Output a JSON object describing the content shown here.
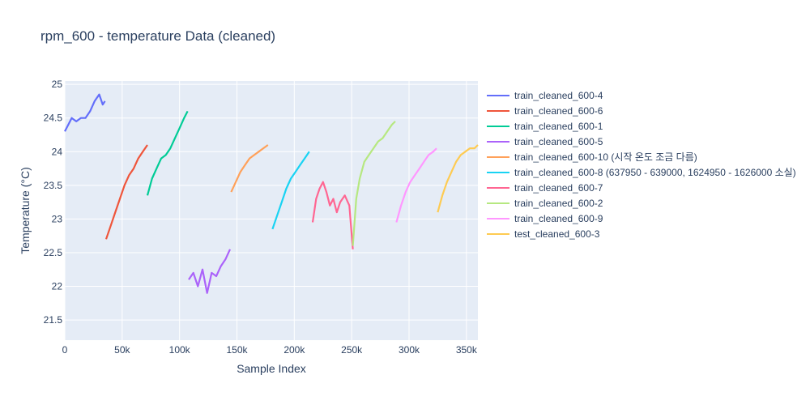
{
  "chart_data": {
    "type": "line",
    "title": "rpm_600 - temperature Data (cleaned)",
    "xlabel": "Sample Index",
    "ylabel": "Temperature (°C)",
    "xlim": [
      0,
      360000
    ],
    "ylim": [
      21.2,
      25.05
    ],
    "x_ticks": [
      0,
      50000,
      100000,
      150000,
      200000,
      250000,
      300000,
      350000
    ],
    "x_tick_labels": [
      "0",
      "50k",
      "100k",
      "150k",
      "200k",
      "250k",
      "300k",
      "350k"
    ],
    "y_ticks": [
      21.5,
      22,
      22.5,
      23,
      23.5,
      24,
      24.5,
      25
    ],
    "y_tick_labels": [
      "21.5",
      "22",
      "22.5",
      "23",
      "23.5",
      "24",
      "24.5",
      "25"
    ],
    "grid": true,
    "legend_position": "right",
    "series": [
      {
        "name": "train_cleaned_600-4",
        "color": "#636efa",
        "x": [
          0,
          3000,
          6000,
          10000,
          14000,
          18000,
          22000,
          26000,
          30000,
          33000,
          35000
        ],
        "y": [
          24.3,
          24.4,
          24.5,
          24.45,
          24.5,
          24.5,
          24.6,
          24.75,
          24.85,
          24.7,
          24.75
        ]
      },
      {
        "name": "train_cleaned_600-6",
        "color": "#ef553b",
        "x": [
          36000,
          40000,
          44000,
          48000,
          52000,
          56000,
          60000,
          64000,
          68000,
          72000
        ],
        "y": [
          22.7,
          22.9,
          23.1,
          23.3,
          23.5,
          23.65,
          23.75,
          23.9,
          24.0,
          24.1
        ]
      },
      {
        "name": "train_cleaned_600-1",
        "color": "#00cc96",
        "x": [
          72000,
          76000,
          80000,
          84000,
          88000,
          92000,
          96000,
          100000,
          104000,
          107000
        ],
        "y": [
          23.35,
          23.6,
          23.75,
          23.9,
          23.95,
          24.05,
          24.2,
          24.35,
          24.5,
          24.6
        ]
      },
      {
        "name": "train_cleaned_600-5",
        "color": "#ab63fa",
        "x": [
          108000,
          112000,
          116000,
          120000,
          124000,
          128000,
          132000,
          136000,
          140000,
          144000
        ],
        "y": [
          22.1,
          22.2,
          22.0,
          22.25,
          21.9,
          22.2,
          22.15,
          22.3,
          22.4,
          22.55
        ]
      },
      {
        "name": "train_cleaned_600-10 (시작 온도 조금 다름)",
        "color": "#ffa15a",
        "x": [
          145000,
          149000,
          153000,
          157000,
          161000,
          165000,
          169000,
          173000,
          177000
        ],
        "y": [
          23.4,
          23.55,
          23.7,
          23.8,
          23.9,
          23.95,
          24.0,
          24.05,
          24.1
        ]
      },
      {
        "name": "train_cleaned_600-8 (637950 - 639000, 1624950 - 1626000 소실)",
        "color": "#19d3f3",
        "x": [
          181000,
          185000,
          189000,
          193000,
          197000,
          201000,
          205000,
          209000,
          213000
        ],
        "y": [
          22.85,
          23.05,
          23.25,
          23.45,
          23.6,
          23.7,
          23.8,
          23.9,
          24.0
        ]
      },
      {
        "name": "train_cleaned_600-7",
        "color": "#ff6692",
        "x": [
          216000,
          219000,
          222000,
          225000,
          228000,
          231000,
          234000,
          237000,
          240000,
          244000,
          248000,
          251000
        ],
        "y": [
          22.95,
          23.3,
          23.45,
          23.55,
          23.4,
          23.2,
          23.3,
          23.1,
          23.25,
          23.35,
          23.2,
          22.55
        ]
      },
      {
        "name": "train_cleaned_600-2",
        "color": "#b6e880",
        "x": [
          251000,
          254000,
          257000,
          261000,
          265000,
          269000,
          273000,
          277000,
          281000,
          285000,
          288000
        ],
        "y": [
          22.6,
          23.3,
          23.6,
          23.85,
          23.95,
          24.05,
          24.15,
          24.2,
          24.3,
          24.4,
          24.45
        ]
      },
      {
        "name": "train_cleaned_600-9",
        "color": "#ff97ff",
        "x": [
          289000,
          293000,
          297000,
          301000,
          305000,
          309000,
          313000,
          317000,
          321000,
          324000
        ],
        "y": [
          22.95,
          23.2,
          23.4,
          23.55,
          23.65,
          23.75,
          23.85,
          23.95,
          24.0,
          24.05
        ]
      },
      {
        "name": "test_cleaned_600-3",
        "color": "#fecb52",
        "x": [
          325000,
          329000,
          333000,
          337000,
          341000,
          345000,
          349000,
          353000,
          357000,
          360000
        ],
        "y": [
          23.1,
          23.35,
          23.55,
          23.7,
          23.85,
          23.95,
          24.0,
          24.05,
          24.05,
          24.1
        ]
      }
    ]
  }
}
